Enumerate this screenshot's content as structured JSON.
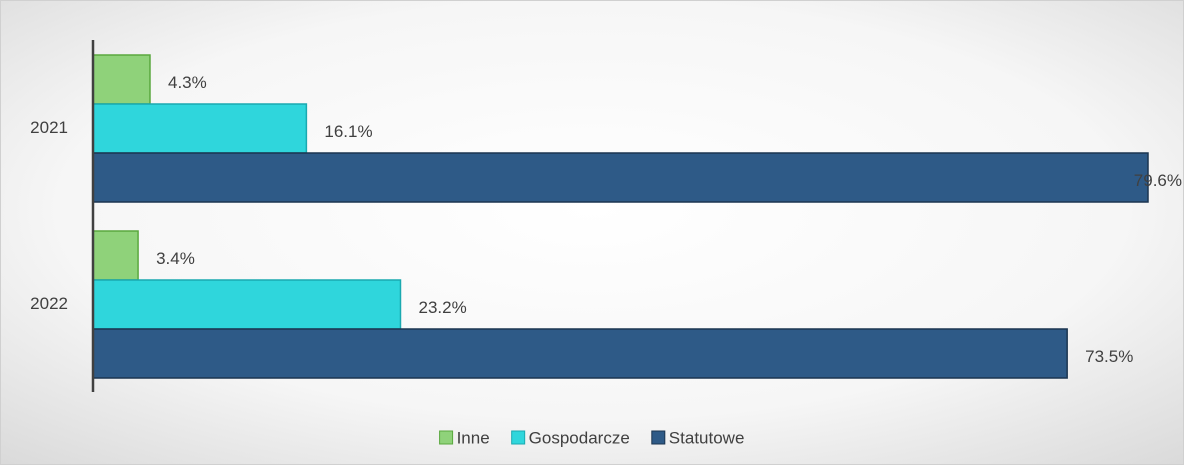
{
  "chart_data": {
    "type": "bar",
    "orientation": "horizontal",
    "categories": [
      "2021",
      "2022"
    ],
    "series": [
      {
        "name": "Inne",
        "color": "#8fd27a",
        "values": [
          4.3,
          3.4
        ],
        "value_labels": [
          "4.3%",
          "3.4%"
        ]
      },
      {
        "name": "Gospodarcze",
        "color": "#2fd6dc",
        "values": [
          16.1,
          23.2
        ],
        "value_labels": [
          "16.1%",
          "23.2%"
        ]
      },
      {
        "name": "Statutowe",
        "color": "#2e5a87",
        "values": [
          79.6,
          73.5
        ],
        "value_labels": [
          "79.6%",
          "73.5%"
        ]
      }
    ],
    "legend": "bottom"
  }
}
